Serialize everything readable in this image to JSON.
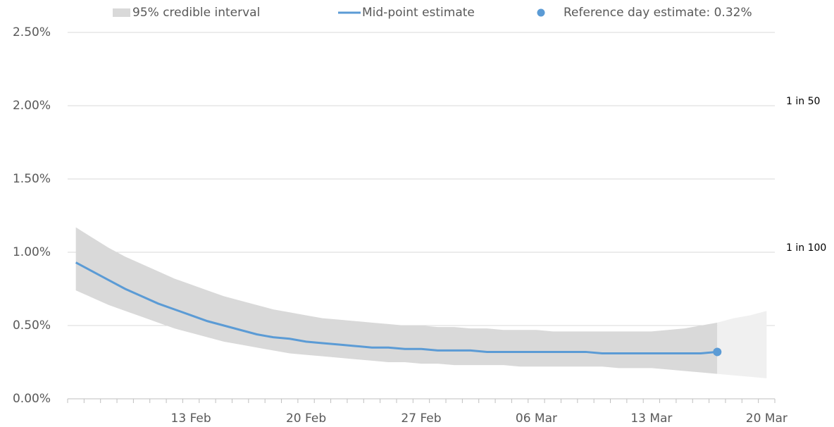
{
  "chart_data": {
    "type": "line",
    "categories": [
      null,
      null,
      null,
      null,
      null,
      null,
      null,
      "13 Feb",
      null,
      null,
      null,
      null,
      null,
      null,
      "20 Feb",
      null,
      null,
      null,
      null,
      null,
      null,
      "27 Feb",
      null,
      null,
      null,
      null,
      null,
      null,
      "06 Mar",
      null,
      null,
      null,
      null,
      null,
      null,
      "13 Mar",
      null,
      null,
      null,
      null,
      null,
      null,
      "20 Mar"
    ],
    "ylim": [
      0,
      2.5
    ],
    "yticks": [
      {
        "value": 0,
        "label": "0.00%"
      },
      {
        "value": 0.5,
        "label": "0.50%"
      },
      {
        "value": 1,
        "label": "1.00%"
      },
      {
        "value": 1.5,
        "label": "1.50%"
      },
      {
        "value": 2,
        "label": "2.00%"
      },
      {
        "value": 2.5,
        "label": "2.50%"
      }
    ],
    "grid": true,
    "bands": [
      {
        "name": "95% credible interval",
        "color": "#d9d9d9",
        "upper": [
          1.17,
          1.1,
          1.03,
          0.97,
          0.92,
          0.87,
          0.82,
          0.78,
          0.74,
          0.7,
          0.67,
          0.64,
          0.61,
          0.59,
          0.57,
          0.55,
          0.54,
          0.53,
          0.52,
          0.51,
          0.5,
          0.5,
          0.49,
          0.49,
          0.48,
          0.48,
          0.47,
          0.47,
          0.47,
          0.46,
          0.46,
          0.46,
          0.46,
          0.46,
          0.46,
          0.46,
          0.47,
          0.48,
          0.5,
          0.52,
          null,
          null,
          null
        ],
        "lower": [
          0.74,
          0.69,
          0.64,
          0.6,
          0.56,
          0.52,
          0.48,
          0.45,
          0.42,
          0.39,
          0.37,
          0.35,
          0.33,
          0.31,
          0.3,
          0.29,
          0.28,
          0.27,
          0.26,
          0.25,
          0.25,
          0.24,
          0.24,
          0.23,
          0.23,
          0.23,
          0.23,
          0.22,
          0.22,
          0.22,
          0.22,
          0.22,
          0.22,
          0.21,
          0.21,
          0.21,
          0.2,
          0.19,
          0.18,
          0.17,
          null,
          null,
          null
        ]
      },
      {
        "color": "#f0f0f0",
        "upper": [
          null,
          null,
          null,
          null,
          null,
          null,
          null,
          null,
          null,
          null,
          null,
          null,
          null,
          null,
          null,
          null,
          null,
          null,
          null,
          null,
          null,
          null,
          null,
          null,
          null,
          null,
          null,
          null,
          null,
          null,
          null,
          null,
          null,
          null,
          null,
          null,
          null,
          null,
          null,
          0.52,
          0.55,
          0.57,
          0.6
        ],
        "lower": [
          null,
          null,
          null,
          null,
          null,
          null,
          null,
          null,
          null,
          null,
          null,
          null,
          null,
          null,
          null,
          null,
          null,
          null,
          null,
          null,
          null,
          null,
          null,
          null,
          null,
          null,
          null,
          null,
          null,
          null,
          null,
          null,
          null,
          null,
          null,
          null,
          null,
          null,
          null,
          0.17,
          0.16,
          0.15,
          0.14
        ]
      }
    ],
    "series": [
      {
        "name": "Mid-point estimate",
        "color": "#5b9bd5",
        "values": [
          0.93,
          0.87,
          0.81,
          0.75,
          0.7,
          0.65,
          0.61,
          0.57,
          0.53,
          0.5,
          0.47,
          0.44,
          0.42,
          0.41,
          0.39,
          0.38,
          0.37,
          0.36,
          0.35,
          0.35,
          0.34,
          0.34,
          0.33,
          0.33,
          0.33,
          0.32,
          0.32,
          0.32,
          0.32,
          0.32,
          0.32,
          0.32,
          0.31,
          0.31,
          0.31,
          0.31,
          0.31,
          0.31,
          0.31,
          0.32,
          null,
          null,
          null
        ]
      },
      {
        "name": "Reference day estimate: 0.32%",
        "color": "#5b9bd5",
        "marker": "point",
        "values": [
          null,
          null,
          null,
          null,
          null,
          null,
          null,
          null,
          null,
          null,
          null,
          null,
          null,
          null,
          null,
          null,
          null,
          null,
          null,
          null,
          null,
          null,
          null,
          null,
          null,
          null,
          null,
          null,
          null,
          null,
          null,
          null,
          null,
          null,
          null,
          null,
          null,
          null,
          null,
          0.32,
          null,
          null,
          null
        ]
      }
    ],
    "annotations": [
      {
        "text": "1 in 50",
        "y": 2
      },
      {
        "text": "1 in 100",
        "y": 1
      }
    ]
  }
}
